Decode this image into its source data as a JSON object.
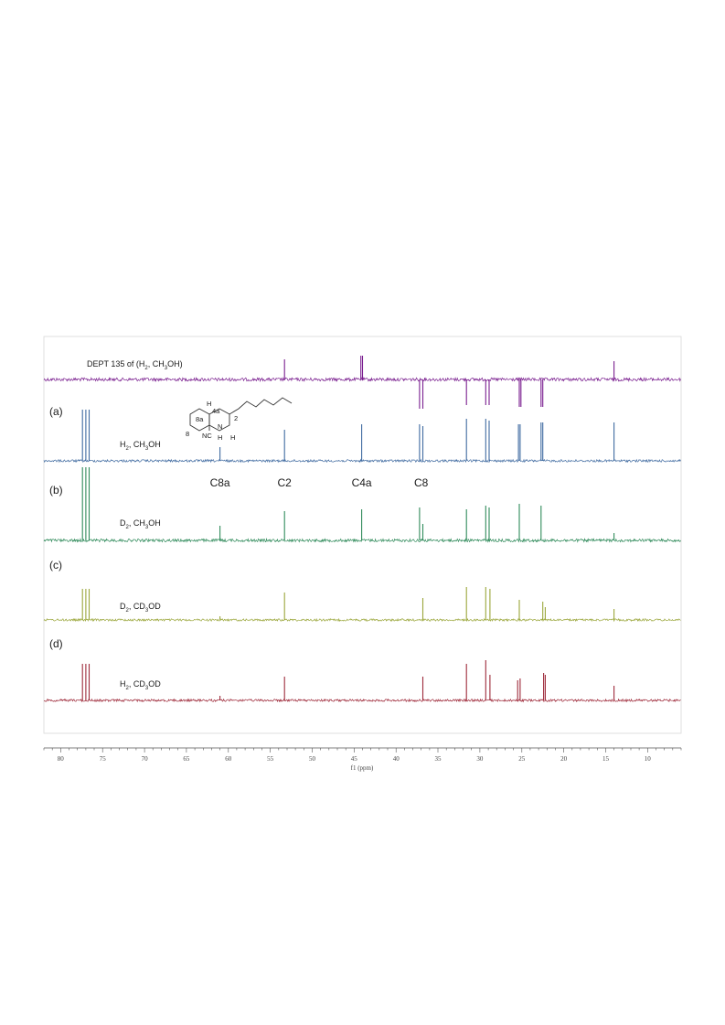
{
  "chart_data": {
    "type": "line",
    "xlabel": "f1 (ppm)",
    "xlim": [
      82,
      6
    ],
    "x_direction": "reversed",
    "ticks": [
      80,
      75,
      70,
      65,
      60,
      55,
      50,
      45,
      40,
      35,
      30,
      25,
      20,
      15,
      10
    ],
    "tick_labels": [
      "80",
      "75",
      "70",
      "65",
      "60",
      "55",
      "50",
      "45",
      "40",
      "35",
      "30",
      "25",
      "20",
      "15",
      "10"
    ],
    "grid": false,
    "legend": "none",
    "peak_annotations": [
      {
        "label": "C8a",
        "ppm": 61.0
      },
      {
        "label": "C2",
        "ppm": 53.3
      },
      {
        "label": "C4a",
        "ppm": 44.1
      },
      {
        "label": "C8",
        "ppm": 37.0
      }
    ],
    "structure_labels": [
      "H",
      "4a",
      "8a",
      "2",
      "8",
      "NC",
      "N",
      "H",
      "H"
    ],
    "series": [
      {
        "name": "DEPT 135 of (H₂, CH₃OH)",
        "panel_label": "",
        "color": "#7a1f8f",
        "noise": 1.8,
        "peaks": [
          {
            "ppm": 53.3,
            "intensity": 22
          },
          {
            "ppm": 44.2,
            "intensity": 26
          },
          {
            "ppm": 44.0,
            "intensity": 26
          },
          {
            "ppm": 37.2,
            "intensity": -32
          },
          {
            "ppm": 36.8,
            "intensity": -32
          },
          {
            "ppm": 31.6,
            "intensity": -28
          },
          {
            "ppm": 29.3,
            "intensity": -28
          },
          {
            "ppm": 28.9,
            "intensity": -28
          },
          {
            "ppm": 25.3,
            "intensity": -30
          },
          {
            "ppm": 25.1,
            "intensity": -30
          },
          {
            "ppm": 22.7,
            "intensity": -30
          },
          {
            "ppm": 22.5,
            "intensity": -30
          },
          {
            "ppm": 14.0,
            "intensity": 20
          }
        ]
      },
      {
        "name": "H₂, CH₃OH",
        "panel_label": "(a)",
        "color": "#3f6aa0",
        "noise": 1.3,
        "peaks": [
          {
            "ppm": 77.4,
            "intensity": 56
          },
          {
            "ppm": 77.0,
            "intensity": 56
          },
          {
            "ppm": 76.6,
            "intensity": 56
          },
          {
            "ppm": 61.0,
            "intensity": 15
          },
          {
            "ppm": 53.3,
            "intensity": 34
          },
          {
            "ppm": 44.1,
            "intensity": 40
          },
          {
            "ppm": 37.2,
            "intensity": 40
          },
          {
            "ppm": 36.8,
            "intensity": 38
          },
          {
            "ppm": 31.6,
            "intensity": 46
          },
          {
            "ppm": 29.3,
            "intensity": 46
          },
          {
            "ppm": 28.9,
            "intensity": 44
          },
          {
            "ppm": 25.4,
            "intensity": 40
          },
          {
            "ppm": 25.2,
            "intensity": 40
          },
          {
            "ppm": 22.7,
            "intensity": 42
          },
          {
            "ppm": 22.5,
            "intensity": 42
          },
          {
            "ppm": 14.0,
            "intensity": 42
          }
        ]
      },
      {
        "name": "D₂, CH₃OH",
        "panel_label": "(b)",
        "color": "#2f8a5a",
        "noise": 1.6,
        "peaks": [
          {
            "ppm": 77.4,
            "intensity": 80
          },
          {
            "ppm": 77.0,
            "intensity": 80
          },
          {
            "ppm": 76.6,
            "intensity": 80
          },
          {
            "ppm": 61.0,
            "intensity": 16
          },
          {
            "ppm": 53.3,
            "intensity": 32
          },
          {
            "ppm": 44.1,
            "intensity": 34
          },
          {
            "ppm": 37.2,
            "intensity": 36
          },
          {
            "ppm": 36.8,
            "intensity": 18
          },
          {
            "ppm": 31.6,
            "intensity": 34
          },
          {
            "ppm": 29.3,
            "intensity": 38
          },
          {
            "ppm": 28.9,
            "intensity": 36
          },
          {
            "ppm": 25.3,
            "intensity": 40
          },
          {
            "ppm": 22.7,
            "intensity": 38
          },
          {
            "ppm": 14.0,
            "intensity": 8
          }
        ]
      },
      {
        "name": "D₂, CD₃OD",
        "panel_label": "(c)",
        "color": "#9aa63a",
        "noise": 1.2,
        "peaks": [
          {
            "ppm": 77.4,
            "intensity": 34
          },
          {
            "ppm": 77.0,
            "intensity": 34
          },
          {
            "ppm": 76.6,
            "intensity": 34
          },
          {
            "ppm": 61.0,
            "intensity": 4
          },
          {
            "ppm": 53.3,
            "intensity": 30
          },
          {
            "ppm": 36.8,
            "intensity": 24
          },
          {
            "ppm": 31.6,
            "intensity": 36
          },
          {
            "ppm": 29.3,
            "intensity": 36
          },
          {
            "ppm": 28.8,
            "intensity": 34
          },
          {
            "ppm": 25.3,
            "intensity": 22
          },
          {
            "ppm": 22.5,
            "intensity": 20
          },
          {
            "ppm": 22.2,
            "intensity": 14
          },
          {
            "ppm": 14.0,
            "intensity": 12
          }
        ]
      },
      {
        "name": "H₂, CD₃OD",
        "panel_label": "(d)",
        "color": "#9e2a3a",
        "noise": 1.3,
        "peaks": [
          {
            "ppm": 77.4,
            "intensity": 40
          },
          {
            "ppm": 77.0,
            "intensity": 40
          },
          {
            "ppm": 76.6,
            "intensity": 40
          },
          {
            "ppm": 61.0,
            "intensity": 5
          },
          {
            "ppm": 53.3,
            "intensity": 26
          },
          {
            "ppm": 36.8,
            "intensity": 26
          },
          {
            "ppm": 31.6,
            "intensity": 40
          },
          {
            "ppm": 29.3,
            "intensity": 44
          },
          {
            "ppm": 28.8,
            "intensity": 28
          },
          {
            "ppm": 25.5,
            "intensity": 22
          },
          {
            "ppm": 25.2,
            "intensity": 24
          },
          {
            "ppm": 22.4,
            "intensity": 30
          },
          {
            "ppm": 22.2,
            "intensity": 28
          },
          {
            "ppm": 14.0,
            "intensity": 16
          }
        ]
      }
    ]
  }
}
